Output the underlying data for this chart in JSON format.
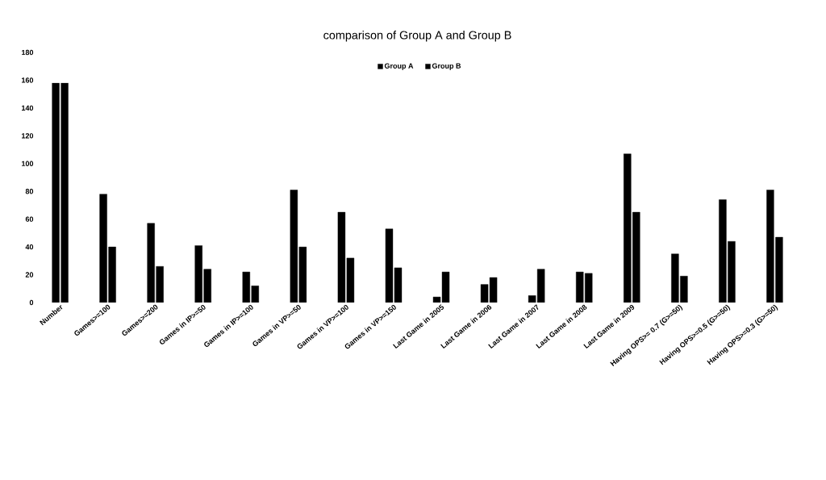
{
  "chart_data": {
    "type": "bar",
    "title": "comparison of Group A and Group B",
    "categories": [
      "Number",
      "Games>=100",
      "Games>=200",
      "Games in IP>=50",
      "Games in IP>=100",
      "Games in VP>=50",
      "Games in VP>=100",
      "Games in VP>=150",
      "Last Game in 2005",
      "Last Game in 2006",
      "Last Game in 2007",
      "Last Game in 2008",
      "Last Game in 2009",
      "Having OPS>= 0.7 (G>=50)",
      "Having OPS>=0.5 (G>=50)",
      "Having OPS>=0.3 (G>=50)"
    ],
    "series": [
      {
        "name": "Group A",
        "color": "#000000",
        "values": [
          158,
          78,
          57,
          41,
          22,
          81,
          65,
          53,
          4,
          13,
          5,
          22,
          107,
          35,
          74,
          81
        ]
      },
      {
        "name": "Group B",
        "color": "#000000",
        "values": [
          158,
          40,
          26,
          24,
          12,
          40,
          32,
          25,
          22,
          18,
          24,
          21,
          65,
          19,
          44,
          47
        ]
      }
    ],
    "ylim": [
      0,
      180
    ],
    "yticks": [
      0,
      20,
      40,
      60,
      80,
      100,
      120,
      140,
      160,
      180
    ],
    "legend": "top",
    "grid": false
  }
}
